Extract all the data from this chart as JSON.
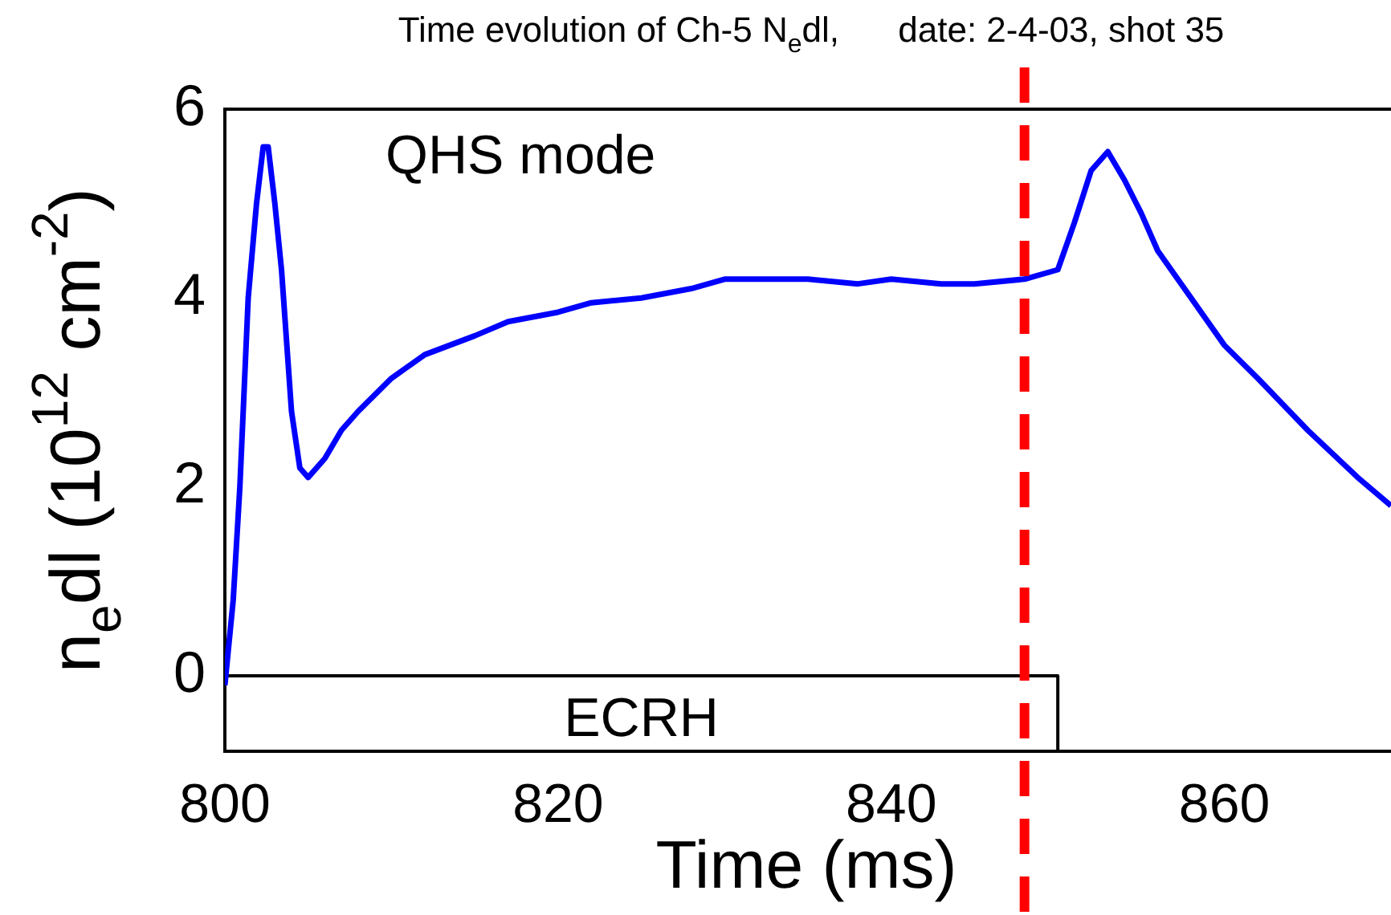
{
  "chart_data": {
    "type": "line",
    "title": "Time evolution of Ch-5 N$_{e}$dl,      date: 2-4-03, shot 35",
    "xlabel": "Time (ms)",
    "ylabel": "n$_{e}$dl (10$^{12}$ cm$^{-2}$)",
    "xlim": [
      800,
      870
    ],
    "ylim": [
      -0.8,
      6
    ],
    "xticks": [
      800,
      820,
      840,
      860
    ],
    "yticks": [
      0,
      2,
      4,
      6
    ],
    "annotations": [
      "QHS mode"
    ],
    "series": [
      {
        "color": "#0000ff",
        "x": [
          800,
          800.5,
          800.9,
          801.4,
          801.9,
          802.3,
          802.6,
          803,
          803.4,
          804,
          804.5,
          805,
          806,
          807,
          808,
          810,
          812,
          815,
          817,
          820,
          822,
          825,
          828,
          830,
          832,
          835,
          838,
          840,
          843,
          845,
          848,
          850,
          851,
          852,
          853,
          854,
          855,
          856,
          858,
          860,
          862,
          865,
          868,
          870
        ],
        "values": [
          -0.1,
          0.8,
          2,
          4,
          5,
          5.6,
          5.6,
          5,
          4.3,
          2.8,
          2.2,
          2.1,
          2.3,
          2.6,
          2.8,
          3.15,
          3.4,
          3.6,
          3.75,
          3.85,
          3.95,
          4,
          4.1,
          4.2,
          4.2,
          4.2,
          4.15,
          4.2,
          4.15,
          4.15,
          4.2,
          4.3,
          4.8,
          5.35,
          5.55,
          5.25,
          4.9,
          4.5,
          4,
          3.5,
          3.15,
          2.6,
          2.1,
          1.8
        ]
      },
      {
        "name": "ECRH",
        "type": "line",
        "color": "#000000",
        "x": [
          800,
          850,
          850
        ],
        "values": [
          0,
          0,
          -0.8
        ]
      }
    ],
    "ref_lines": [
      {
        "axis": "x",
        "value": 848,
        "color": "#ff0000",
        "line_style": "dashed"
      }
    ]
  }
}
